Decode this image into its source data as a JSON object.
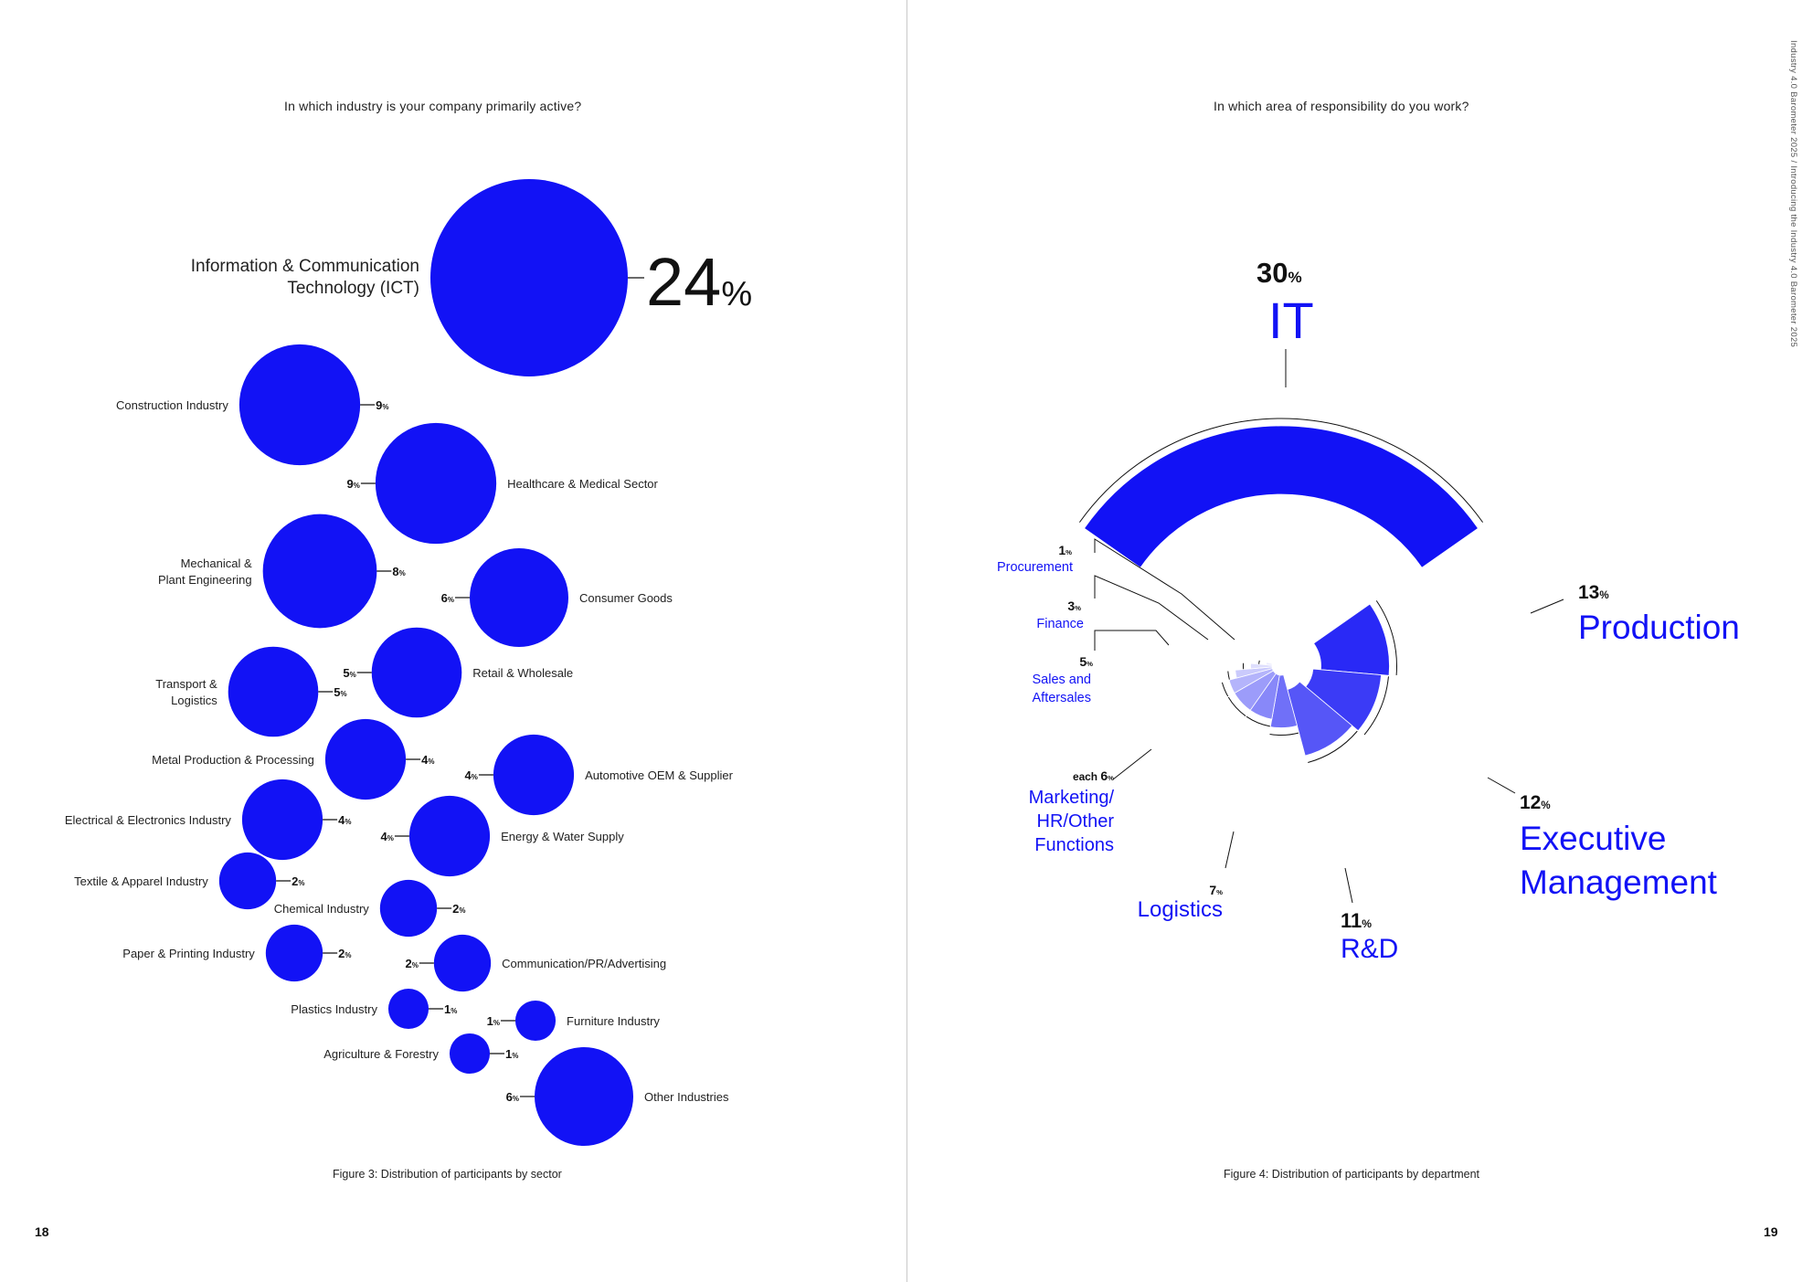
{
  "colors": {
    "primary": "#1212f5",
    "text": "#222222"
  },
  "left_page": {
    "question": "In which industry is your company primarily active?",
    "caption": "Figure 3: Distribution of participants by sector",
    "page_number": "18"
  },
  "right_page": {
    "question": "In which area of responsibility do you work?",
    "caption": "Figure 4: Distribution of participants by department",
    "page_number": "19",
    "running_header": "Industry 4.0 Barometer 2025  /  Introducing the Industry 4.0 Barometer 2025"
  },
  "chart_data": [
    {
      "type": "bubble",
      "title": "In which industry is your company primarily active?",
      "caption": "Figure 3: Distribution of participants by sector",
      "unit": "%",
      "series": [
        {
          "name": "Information & Communication Technology (ICT)",
          "value": 24
        },
        {
          "name": "Construction Industry",
          "value": 9
        },
        {
          "name": "Healthcare & Medical Sector",
          "value": 9
        },
        {
          "name": "Mechanical & Plant Engineering",
          "value": 8
        },
        {
          "name": "Consumer Goods",
          "value": 6
        },
        {
          "name": "Retail & Wholesale",
          "value": 5
        },
        {
          "name": "Transport & Logistics",
          "value": 5
        },
        {
          "name": "Metal Production & Processing",
          "value": 4
        },
        {
          "name": "Automotive OEM & Supplier",
          "value": 4
        },
        {
          "name": "Electrical & Electronics Industry",
          "value": 4
        },
        {
          "name": "Energy & Water Supply",
          "value": 4
        },
        {
          "name": "Textile & Apparel Industry",
          "value": 2
        },
        {
          "name": "Chemical Industry",
          "value": 2
        },
        {
          "name": "Paper & Printing Industry",
          "value": 2
        },
        {
          "name": "Communication/PR/Advertising",
          "value": 2
        },
        {
          "name": "Plastics Industry",
          "value": 1
        },
        {
          "name": "Furniture Industry",
          "value": 1
        },
        {
          "name": "Agriculture & Forestry",
          "value": 1
        },
        {
          "name": "Other Industries",
          "value": 6
        }
      ]
    },
    {
      "type": "radial_bar",
      "title": "In which area of responsibility do you work?",
      "caption": "Figure 4: Distribution of participants by department",
      "unit": "%",
      "series": [
        {
          "name": "IT",
          "value": 30
        },
        {
          "name": "Production",
          "value": 13
        },
        {
          "name": "Executive Management",
          "value": 12
        },
        {
          "name": "R&D",
          "value": 11
        },
        {
          "name": "Logistics",
          "value": 7
        },
        {
          "name": "Marketing/HR/Other Functions",
          "value": 6,
          "note": "each"
        },
        {
          "name": "Sales and Aftersales",
          "value": 5
        },
        {
          "name": "Finance",
          "value": 3
        },
        {
          "name": "Procurement",
          "value": 1
        }
      ]
    }
  ]
}
